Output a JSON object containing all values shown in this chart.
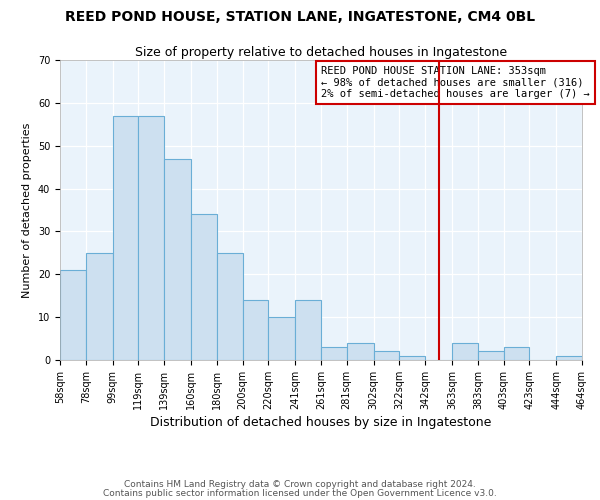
{
  "title": "REED POND HOUSE, STATION LANE, INGATESTONE, CM4 0BL",
  "subtitle": "Size of property relative to detached houses in Ingatestone",
  "xlabel": "Distribution of detached houses by size in Ingatestone",
  "ylabel": "Number of detached properties",
  "bin_edges": [
    58,
    78,
    99,
    119,
    139,
    160,
    180,
    200,
    220,
    241,
    261,
    281,
    302,
    322,
    342,
    363,
    383,
    403,
    423,
    444,
    464
  ],
  "bin_labels": [
    "58sqm",
    "78sqm",
    "99sqm",
    "119sqm",
    "139sqm",
    "160sqm",
    "180sqm",
    "200sqm",
    "220sqm",
    "241sqm",
    "261sqm",
    "281sqm",
    "302sqm",
    "322sqm",
    "342sqm",
    "363sqm",
    "383sqm",
    "403sqm",
    "423sqm",
    "444sqm",
    "464sqm"
  ],
  "counts": [
    21,
    25,
    57,
    57,
    47,
    34,
    25,
    14,
    10,
    14,
    3,
    4,
    2,
    1,
    0,
    4,
    2,
    3,
    0,
    1
  ],
  "bar_facecolor": "#cde0f0",
  "bar_edgecolor": "#6aaed6",
  "plot_bg_color": "#eaf3fb",
  "vline_x": 353,
  "vline_color": "#cc0000",
  "ylim": [
    0,
    70
  ],
  "yticks": [
    0,
    10,
    20,
    30,
    40,
    50,
    60,
    70
  ],
  "annotation_text": "REED POND HOUSE STATION LANE: 353sqm\n← 98% of detached houses are smaller (316)\n2% of semi-detached houses are larger (7) →",
  "annotation_box_edgecolor": "#cc0000",
  "footnote1": "Contains HM Land Registry data © Crown copyright and database right 2024.",
  "footnote2": "Contains public sector information licensed under the Open Government Licence v3.0.",
  "title_fontsize": 10,
  "subtitle_fontsize": 9,
  "xlabel_fontsize": 9,
  "ylabel_fontsize": 8,
  "tick_fontsize": 7,
  "annotation_fontsize": 7.5,
  "footnote_fontsize": 6.5
}
